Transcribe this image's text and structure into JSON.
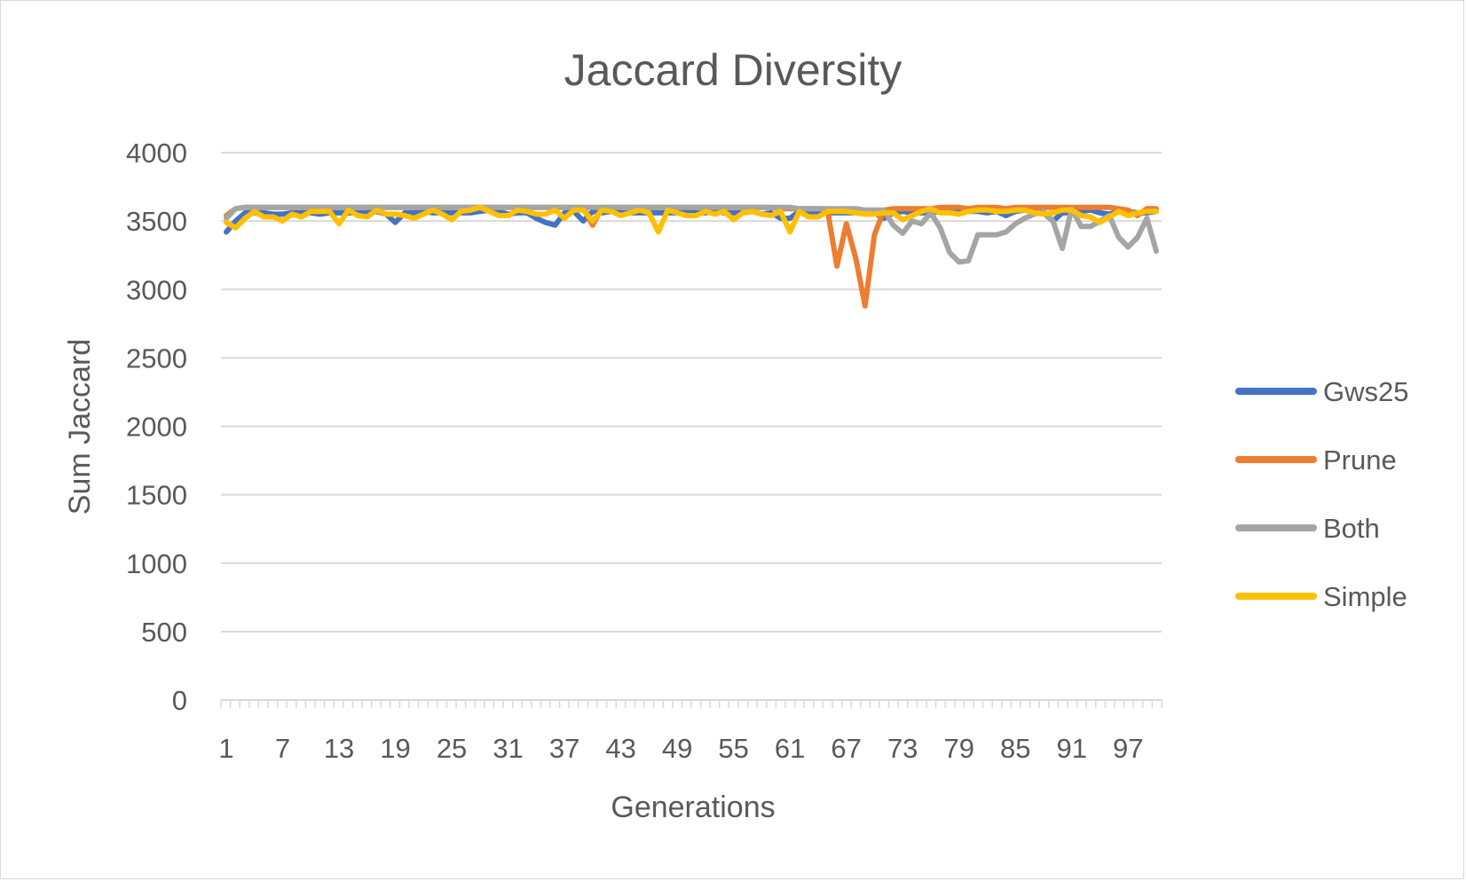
{
  "chart_data": {
    "type": "line",
    "title": "Jaccard Diversity",
    "xlabel": "Generations",
    "ylabel": "Sum Jaccard",
    "ylim": [
      0,
      4000
    ],
    "yticks": [
      0,
      500,
      1000,
      1500,
      2000,
      2500,
      3000,
      3500,
      4000
    ],
    "xtick_labels": [
      "1",
      "7",
      "13",
      "19",
      "25",
      "31",
      "37",
      "43",
      "49",
      "55",
      "61",
      "67",
      "73",
      "79",
      "85",
      "91",
      "97"
    ],
    "x_range": [
      1,
      100
    ],
    "grid": "horizontal",
    "legend_position": "right",
    "series": [
      {
        "name": "Gws25",
        "color": "#4472C4",
        "values": [
          3420,
          3500,
          3560,
          3560,
          3560,
          3550,
          3550,
          3560,
          3560,
          3560,
          3550,
          3560,
          3560,
          3560,
          3560,
          3560,
          3570,
          3550,
          3490,
          3560,
          3560,
          3570,
          3560,
          3560,
          3560,
          3560,
          3560,
          3570,
          3580,
          3570,
          3550,
          3560,
          3560,
          3520,
          3490,
          3470,
          3560,
          3570,
          3500,
          3570,
          3560,
          3570,
          3560,
          3560,
          3560,
          3560,
          3560,
          3560,
          3560,
          3570,
          3560,
          3560,
          3570,
          3560,
          3560,
          3560,
          3570,
          3550,
          3560,
          3520,
          3520,
          3570,
          3560,
          3560,
          3560,
          3560,
          3560,
          3560,
          3560,
          3560,
          3520,
          3560,
          3570,
          3560,
          3560,
          3560,
          3570,
          3580,
          3580,
          3570,
          3570,
          3560,
          3570,
          3540,
          3570,
          3580,
          3570,
          3560,
          3500,
          3560,
          3560,
          3570,
          3580,
          3560,
          3550,
          3570,
          3570,
          3560,
          3560,
          3570
        ]
      },
      {
        "name": "Prune",
        "color": "#ED7D31",
        "values": [
          3540,
          3590,
          3600,
          3600,
          3600,
          3600,
          3600,
          3600,
          3600,
          3600,
          3600,
          3600,
          3600,
          3600,
          3600,
          3600,
          3600,
          3600,
          3600,
          3600,
          3600,
          3600,
          3600,
          3600,
          3600,
          3600,
          3600,
          3600,
          3600,
          3600,
          3600,
          3600,
          3600,
          3600,
          3600,
          3600,
          3600,
          3600,
          3600,
          3470,
          3600,
          3600,
          3600,
          3600,
          3600,
          3600,
          3600,
          3600,
          3600,
          3600,
          3600,
          3600,
          3600,
          3600,
          3600,
          3600,
          3600,
          3600,
          3600,
          3590,
          3590,
          3590,
          3590,
          3590,
          3580,
          3170,
          3480,
          3230,
          2880,
          3400,
          3580,
          3590,
          3590,
          3590,
          3590,
          3590,
          3600,
          3600,
          3600,
          3590,
          3600,
          3600,
          3600,
          3590,
          3600,
          3600,
          3600,
          3600,
          3600,
          3600,
          3600,
          3600,
          3600,
          3600,
          3600,
          3590,
          3580,
          3540,
          3590,
          3590
        ]
      },
      {
        "name": "Both",
        "color": "#A5A5A5",
        "values": [
          3520,
          3590,
          3600,
          3600,
          3600,
          3600,
          3600,
          3600,
          3600,
          3600,
          3600,
          3600,
          3600,
          3600,
          3600,
          3600,
          3600,
          3600,
          3600,
          3600,
          3600,
          3600,
          3600,
          3600,
          3600,
          3600,
          3600,
          3600,
          3600,
          3600,
          3600,
          3600,
          3600,
          3600,
          3600,
          3600,
          3600,
          3600,
          3600,
          3600,
          3600,
          3600,
          3600,
          3600,
          3600,
          3600,
          3600,
          3600,
          3600,
          3600,
          3600,
          3600,
          3600,
          3600,
          3600,
          3600,
          3600,
          3600,
          3600,
          3600,
          3600,
          3590,
          3590,
          3590,
          3590,
          3590,
          3590,
          3590,
          3580,
          3580,
          3580,
          3470,
          3410,
          3500,
          3480,
          3560,
          3450,
          3270,
          3200,
          3210,
          3400,
          3400,
          3400,
          3420,
          3480,
          3520,
          3550,
          3570,
          3500,
          3300,
          3590,
          3460,
          3460,
          3500,
          3540,
          3380,
          3310,
          3380,
          3520,
          3280
        ]
      },
      {
        "name": "Simple",
        "color": "#FFC000",
        "values": [
          3490,
          3450,
          3520,
          3570,
          3530,
          3530,
          3500,
          3550,
          3530,
          3570,
          3570,
          3570,
          3480,
          3580,
          3540,
          3530,
          3580,
          3550,
          3550,
          3540,
          3520,
          3550,
          3580,
          3550,
          3510,
          3570,
          3580,
          3600,
          3570,
          3540,
          3540,
          3580,
          3570,
          3550,
          3550,
          3580,
          3520,
          3580,
          3580,
          3500,
          3580,
          3570,
          3540,
          3560,
          3580,
          3560,
          3420,
          3580,
          3560,
          3540,
          3540,
          3570,
          3550,
          3570,
          3510,
          3560,
          3570,
          3550,
          3540,
          3570,
          3420,
          3570,
          3530,
          3530,
          3570,
          3570,
          3570,
          3560,
          3550,
          3550,
          3560,
          3560,
          3510,
          3540,
          3570,
          3590,
          3560,
          3560,
          3550,
          3570,
          3580,
          3580,
          3570,
          3570,
          3580,
          3580,
          3560,
          3550,
          3560,
          3580,
          3580,
          3540,
          3530,
          3490,
          3530,
          3570,
          3540,
          3560,
          3570,
          3570
        ]
      }
    ]
  }
}
